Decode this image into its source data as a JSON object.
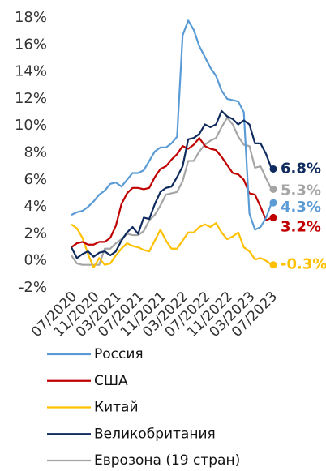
{
  "chart_data": {
    "type": "line",
    "categories": [
      "07/2020",
      null,
      null,
      null,
      "11/2020",
      null,
      null,
      null,
      "03/2021",
      null,
      null,
      null,
      "07/2021",
      null,
      null,
      null,
      "11/2021",
      null,
      null,
      null,
      "03/2022",
      null,
      null,
      null,
      "07/2022",
      null,
      null,
      null,
      "11/2022",
      null,
      null,
      null,
      "03/2023",
      null,
      null,
      null,
      "07/2023"
    ],
    "ylim": [
      -2,
      18
    ],
    "yticks": [
      {
        "value": -2,
        "label": "-2%"
      },
      {
        "value": 0,
        "label": "0%"
      },
      {
        "value": 2,
        "label": "2%"
      },
      {
        "value": 4,
        "label": "4%"
      },
      {
        "value": 6,
        "label": "6%"
      },
      {
        "value": 8,
        "label": "8%"
      },
      {
        "value": 10,
        "label": "10%"
      },
      {
        "value": 12,
        "label": "12%"
      },
      {
        "value": 14,
        "label": "14%"
      },
      {
        "value": 16,
        "label": "16%"
      },
      {
        "value": 18,
        "label": "18%"
      }
    ],
    "series": [
      {
        "name": "Россия",
        "color": "#5b9bd5",
        "values": [
          3.4,
          3.6,
          3.7,
          4.0,
          4.4,
          4.9,
          5.2,
          5.7,
          5.8,
          5.5,
          6.0,
          6.5,
          6.5,
          6.7,
          7.4,
          8.1,
          8.4,
          8.4,
          8.7,
          9.2,
          16.7,
          17.8,
          17.1,
          15.9,
          15.1,
          14.3,
          13.7,
          12.6,
          12.0,
          11.9,
          11.8,
          11.0,
          3.5,
          2.3,
          2.5,
          3.2,
          4.3
        ],
        "value_labels": [
          null,
          null,
          null,
          null,
          null,
          null,
          null,
          null,
          null,
          null,
          null,
          null,
          null,
          null,
          null,
          null,
          null,
          null,
          null,
          null,
          null,
          null,
          null,
          null,
          null,
          null,
          null,
          null,
          null,
          null,
          null,
          null,
          null,
          null,
          null,
          null,
          "4.3%"
        ]
      },
      {
        "name": "США",
        "color": "#c00000",
        "values": [
          1.0,
          1.3,
          1.4,
          1.2,
          1.2,
          1.4,
          1.4,
          1.7,
          2.6,
          4.2,
          5.0,
          5.4,
          5.4,
          5.3,
          5.4,
          6.2,
          6.8,
          7.0,
          7.5,
          7.9,
          8.5,
          8.3,
          8.6,
          9.1,
          8.5,
          8.3,
          8.2,
          7.7,
          7.1,
          6.5,
          6.4,
          6.0,
          5.0,
          4.9,
          4.0,
          3.0,
          3.2
        ],
        "value_labels": [
          null,
          null,
          null,
          null,
          null,
          null,
          null,
          null,
          null,
          null,
          null,
          null,
          null,
          null,
          null,
          null,
          null,
          null,
          null,
          null,
          null,
          null,
          null,
          null,
          null,
          null,
          null,
          null,
          null,
          null,
          null,
          null,
          null,
          null,
          null,
          null,
          "3.2%"
        ]
      },
      {
        "name": "Китай",
        "color": "#ffc000",
        "values": [
          2.7,
          2.4,
          1.7,
          0.5,
          -0.5,
          0.2,
          -0.3,
          -0.2,
          0.4,
          0.9,
          1.3,
          1.1,
          1.0,
          0.8,
          0.7,
          1.5,
          2.3,
          1.5,
          0.9,
          0.9,
          1.5,
          2.1,
          2.1,
          2.5,
          2.7,
          2.5,
          2.8,
          2.1,
          1.6,
          1.8,
          2.1,
          1.0,
          0.7,
          0.1,
          0.2,
          0.0,
          -0.3
        ],
        "value_labels": [
          null,
          null,
          null,
          null,
          null,
          null,
          null,
          null,
          null,
          null,
          null,
          null,
          null,
          null,
          null,
          null,
          null,
          null,
          null,
          null,
          null,
          null,
          null,
          null,
          null,
          null,
          null,
          null,
          null,
          null,
          null,
          null,
          null,
          null,
          null,
          null,
          "-0.3%"
        ]
      },
      {
        "name": "Великобритания",
        "color": "#0f2a5c",
        "values": [
          1.0,
          0.2,
          0.5,
          0.7,
          0.3,
          0.6,
          0.7,
          0.4,
          0.7,
          1.5,
          2.1,
          2.5,
          2.0,
          3.2,
          3.1,
          4.2,
          5.1,
          5.4,
          5.5,
          6.2,
          7.0,
          9.0,
          9.1,
          9.4,
          10.1,
          9.9,
          10.1,
          11.1,
          10.7,
          10.5,
          10.1,
          10.4,
          10.1,
          8.7,
          8.7,
          7.9,
          6.8
        ],
        "value_labels": [
          null,
          null,
          null,
          null,
          null,
          null,
          null,
          null,
          null,
          null,
          null,
          null,
          null,
          null,
          null,
          null,
          null,
          null,
          null,
          null,
          null,
          null,
          null,
          null,
          null,
          null,
          null,
          null,
          null,
          null,
          null,
          null,
          null,
          null,
          null,
          null,
          "6.8%"
        ]
      },
      {
        "name": "Еврозона (19 стран)",
        "color": "#a5a5a5",
        "values": [
          0.4,
          -0.2,
          -0.3,
          -0.3,
          -0.3,
          -0.3,
          0.9,
          0.9,
          1.3,
          1.6,
          2.0,
          1.9,
          1.9,
          2.2,
          3.0,
          3.4,
          4.1,
          4.9,
          5.0,
          5.1,
          5.9,
          7.4,
          7.4,
          8.1,
          8.6,
          8.9,
          9.1,
          9.9,
          10.6,
          10.1,
          9.2,
          8.6,
          8.5,
          6.9,
          7.0,
          6.1,
          5.3
        ],
        "value_labels": [
          null,
          null,
          null,
          null,
          null,
          null,
          null,
          null,
          null,
          null,
          null,
          null,
          null,
          null,
          null,
          null,
          null,
          null,
          null,
          null,
          null,
          null,
          null,
          null,
          null,
          null,
          null,
          null,
          null,
          null,
          null,
          null,
          null,
          null,
          null,
          null,
          "5.3%"
        ]
      }
    ]
  }
}
